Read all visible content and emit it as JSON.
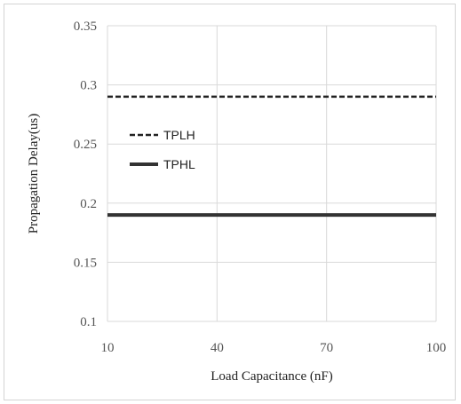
{
  "chart_data": {
    "type": "line",
    "title": "",
    "xlabel": "Load Capacitance (nF)",
    "ylabel": "Propagation Delay(us)",
    "x_ticks": [
      "10",
      "40",
      "70",
      "100"
    ],
    "y_ticks": [
      "0.1",
      "0.15",
      "0.2",
      "0.25",
      "0.3",
      "0.35"
    ],
    "xlim": [
      10,
      100
    ],
    "ylim": [
      0.1,
      0.35
    ],
    "grid": true,
    "legend_position": "center-left",
    "series": [
      {
        "name": "TPLH",
        "style": "dashed",
        "color": "#222222",
        "x": [
          10,
          100
        ],
        "y": [
          0.29,
          0.29
        ]
      },
      {
        "name": "TPHL",
        "style": "solid",
        "color": "#333333",
        "x": [
          10,
          100
        ],
        "y": [
          0.19,
          0.19
        ]
      }
    ]
  }
}
